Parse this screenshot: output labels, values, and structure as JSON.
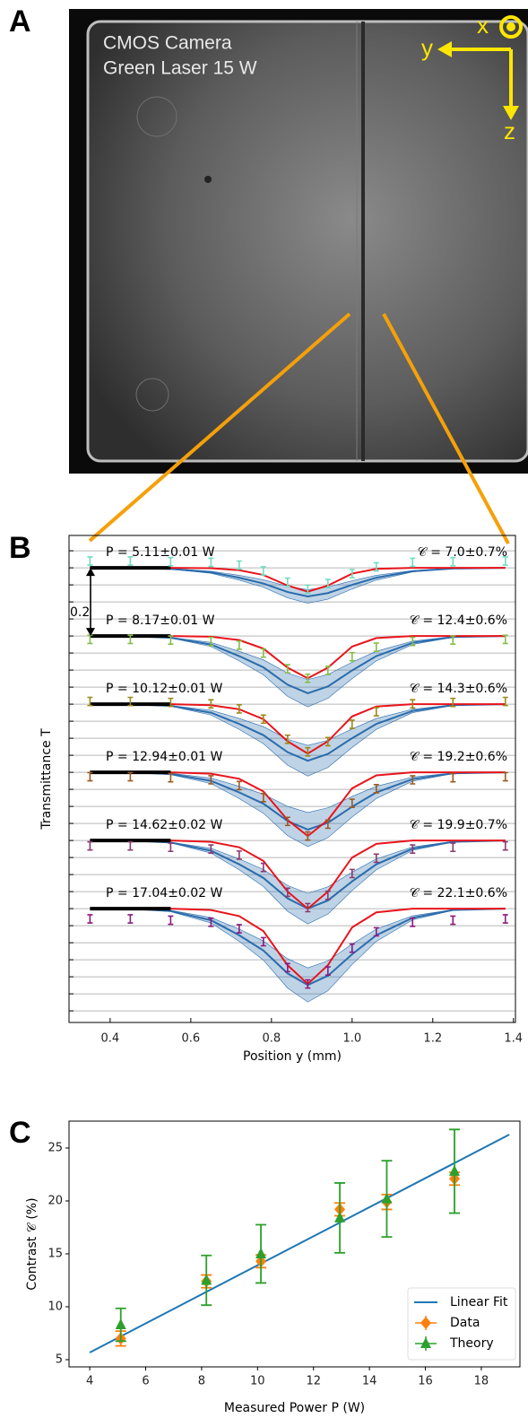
{
  "image_panel": {
    "label": "A",
    "caption_lines": [
      "CMOS Camera",
      "Green Laser 15 W"
    ],
    "axes": [
      "x",
      "y",
      "z"
    ]
  },
  "chart_data": [
    {
      "label": "B",
      "type": "line",
      "xlabel": "Position y (mm)",
      "ylabel": "Transmittance T",
      "xlim": [
        0.298,
        1.405
      ],
      "ylim": [
        -0.334,
        1.095
      ],
      "xticks": [
        0.4,
        0.6,
        0.8,
        {
          "value": 1,
          "label": "1.0"
        },
        1.2,
        1.4
      ],
      "ygrid": [
        -0.3,
        -0.25,
        -0.2,
        -0.15,
        -0.1,
        -0.05,
        0,
        0.05,
        0.1,
        0.15,
        0.2,
        0.25,
        0.3,
        0.35,
        0.4,
        0.45,
        0.5,
        0.55,
        0.6,
        0.65,
        0.7,
        0.75,
        0.8,
        0.85,
        0.9,
        0.95,
        1,
        1.05
      ],
      "scale_bar": 0.2,
      "fit_color": "#e8141c",
      "theory_color": "#2a6cac",
      "x": [
        0.35,
        0.45,
        0.55,
        0.65,
        0.72,
        0.78,
        0.84,
        0.89,
        0.94,
        1.0,
        1.06,
        1.15,
        1.25,
        1.38
      ],
      "series": [
        {
          "power_label": "P = 5.11±0.01 W",
          "contrast_label": "𝒞 = 7.0±0.7%",
          "color": "#6fdcc0",
          "baseline": 1,
          "error": 0.012,
          "values": [
            1.02,
            1.02,
            1.018,
            1.016,
            1.008,
            0.991,
            0.958,
            0.937,
            0.954,
            0.983,
            1.003,
            1.016,
            1.018,
            1.02
          ],
          "fit": [
            1,
            1,
            1,
            0.999,
            0.993,
            0.979,
            0.948,
            0.93,
            0.948,
            0.983,
            0.997,
            1,
            1,
            1
          ],
          "theory": [
            1,
            1,
            0.997,
            0.987,
            0.971,
            0.954,
            0.929,
            0.916,
            0.926,
            0.95,
            0.971,
            0.99,
            0.998,
            1
          ],
          "band": [
            0,
            0,
            0.001,
            0.003,
            0.007,
            0.011,
            0.017,
            0.02,
            0.018,
            0.012,
            0.007,
            0.002,
            0,
            0
          ]
        },
        {
          "power_label": "P = 8.17±0.01 W",
          "contrast_label": "𝒞 = 12.4±0.6%",
          "color": "#86bd48",
          "baseline": 0.8,
          "error": 0.012,
          "values": [
            0.79,
            0.79,
            0.788,
            0.784,
            0.773,
            0.75,
            0.704,
            0.676,
            0.699,
            0.739,
            0.767,
            0.784,
            0.788,
            0.79
          ],
          "fit": [
            0.8,
            0.8,
            0.8,
            0.798,
            0.788,
            0.763,
            0.707,
            0.676,
            0.707,
            0.769,
            0.794,
            0.8,
            0.8,
            0.8
          ],
          "theory": [
            0.8,
            0.8,
            0.795,
            0.775,
            0.741,
            0.708,
            0.657,
            0.632,
            0.652,
            0.699,
            0.741,
            0.78,
            0.797,
            0.8
          ],
          "band": [
            0,
            0,
            0.001,
            0.006,
            0.014,
            0.022,
            0.034,
            0.04,
            0.035,
            0.024,
            0.014,
            0.005,
            0.001,
            0
          ]
        },
        {
          "power_label": "P = 10.12±0.01 W",
          "contrast_label": "𝒞 = 14.3±0.6%",
          "color": "#9a8a1a",
          "baseline": 0.6,
          "error": 0.012,
          "values": [
            0.608,
            0.608,
            0.605,
            0.601,
            0.586,
            0.556,
            0.497,
            0.46,
            0.49,
            0.541,
            0.578,
            0.601,
            0.605,
            0.608
          ],
          "fit": [
            0.6,
            0.6,
            0.6,
            0.597,
            0.585,
            0.556,
            0.491,
            0.455,
            0.491,
            0.564,
            0.593,
            0.6,
            0.6,
            0.6
          ],
          "theory": [
            0.6,
            0.6,
            0.595,
            0.575,
            0.542,
            0.509,
            0.459,
            0.434,
            0.454,
            0.5,
            0.542,
            0.58,
            0.597,
            0.6
          ],
          "band": [
            0,
            0,
            0.001,
            0.007,
            0.016,
            0.025,
            0.038,
            0.045,
            0.04,
            0.027,
            0.016,
            0.005,
            0.001,
            0
          ]
        },
        {
          "power_label": "P = 12.94±0.01 W",
          "contrast_label": "𝒞 = 19.2±0.6%",
          "color": "#9c5a22",
          "baseline": 0.4,
          "error": 0.012,
          "values": [
            0.387,
            0.387,
            0.384,
            0.378,
            0.361,
            0.326,
            0.256,
            0.213,
            0.248,
            0.309,
            0.352,
            0.378,
            0.384,
            0.387
          ],
          "fit": [
            0.4,
            0.4,
            0.4,
            0.396,
            0.381,
            0.344,
            0.26,
            0.213,
            0.26,
            0.353,
            0.391,
            0.4,
            0.4,
            0.4
          ],
          "theory": [
            0.4,
            0.4,
            0.395,
            0.375,
            0.341,
            0.308,
            0.257,
            0.232,
            0.252,
            0.299,
            0.341,
            0.38,
            0.397,
            0.4
          ],
          "band": [
            0,
            0,
            0.002,
            0.008,
            0.018,
            0.028,
            0.043,
            0.05,
            0.044,
            0.03,
            0.018,
            0.006,
            0.001,
            0
          ]
        },
        {
          "power_label": "P = 14.62±0.02 W",
          "contrast_label": "𝒞 = 19.9±0.7%",
          "color": "#8a3a6e",
          "baseline": 0.2,
          "error": 0.012,
          "values": [
            0.184,
            0.184,
            0.18,
            0.175,
            0.157,
            0.121,
            0.048,
            0.003,
            0.039,
            0.103,
            0.148,
            0.175,
            0.18,
            0.184
          ],
          "fit": [
            0.2,
            0.2,
            0.2,
            0.196,
            0.18,
            0.14,
            0.05,
            0,
            0.05,
            0.15,
            0.19,
            0.2,
            0.2,
            0.2
          ],
          "theory": [
            0.2,
            0.2,
            0.194,
            0.17,
            0.13,
            0.09,
            0.03,
            0,
            0.024,
            0.08,
            0.13,
            0.176,
            0.196,
            0.2
          ],
          "band": [
            0,
            0,
            0.001,
            0.007,
            0.016,
            0.025,
            0.038,
            0.045,
            0.04,
            0.027,
            0.016,
            0.005,
            0.001,
            0
          ]
        },
        {
          "power_label": "P = 17.04±0.02 W",
          "contrast_label": "𝒞 = 22.1±0.6%",
          "color": "#8a1a80",
          "baseline": 0,
          "error": 0.012,
          "values": [
            -0.03,
            -0.03,
            -0.034,
            -0.04,
            -0.059,
            -0.097,
            -0.173,
            -0.221,
            -0.183,
            -0.116,
            -0.068,
            -0.04,
            -0.034,
            -0.03
          ],
          "fit": [
            0,
            0,
            0,
            -0.004,
            -0.022,
            -0.066,
            -0.166,
            -0.221,
            -0.166,
            -0.055,
            -0.011,
            0,
            0,
            0
          ],
          "theory": [
            0,
            0,
            -0.007,
            -0.034,
            -0.078,
            -0.123,
            -0.19,
            -0.224,
            -0.197,
            -0.134,
            -0.078,
            -0.027,
            -0.004,
            0
          ],
          "band": [
            0,
            0,
            0.002,
            0.008,
            0.018,
            0.028,
            0.043,
            0.05,
            0.044,
            0.03,
            0.018,
            0.006,
            0.001,
            0
          ]
        }
      ]
    },
    {
      "label": "C",
      "type": "scatter",
      "xlabel": "Measured Power P (W)",
      "ylabel": "Contrast 𝒞 (%)",
      "xlim": [
        3.26,
        19.38
      ],
      "ylim": [
        4.32,
        27.54
      ],
      "xticks": [
        4,
        6,
        8,
        10,
        12,
        14,
        16,
        18
      ],
      "yticks": [
        5,
        10,
        15,
        20,
        25
      ],
      "legend": "lower right",
      "series": [
        {
          "name": "Linear Fit",
          "kind": "line",
          "color": "#1f77b4",
          "x": [
            4,
            19
          ],
          "values": [
            5.68,
            26.27
          ]
        },
        {
          "name": "Data",
          "kind": "errorbar",
          "marker": "diamond",
          "color": "#ff7f0e",
          "x": [
            5.11,
            8.17,
            10.12,
            12.94,
            14.62,
            17.04
          ],
          "values": [
            7.0,
            12.4,
            14.3,
            19.2,
            19.9,
            22.1
          ],
          "errors": [
            0.7,
            0.6,
            0.6,
            0.6,
            0.7,
            0.6
          ]
        },
        {
          "name": "Theory",
          "kind": "errorbar",
          "marker": "triangle",
          "color": "#2ca02c",
          "x": [
            5.11,
            8.17,
            10.12,
            12.94,
            14.62,
            17.04
          ],
          "values": [
            8.3,
            12.5,
            15.0,
            18.4,
            20.2,
            22.8
          ],
          "errors": [
            1.55,
            2.35,
            2.75,
            3.3,
            3.6,
            3.95
          ]
        }
      ]
    }
  ]
}
